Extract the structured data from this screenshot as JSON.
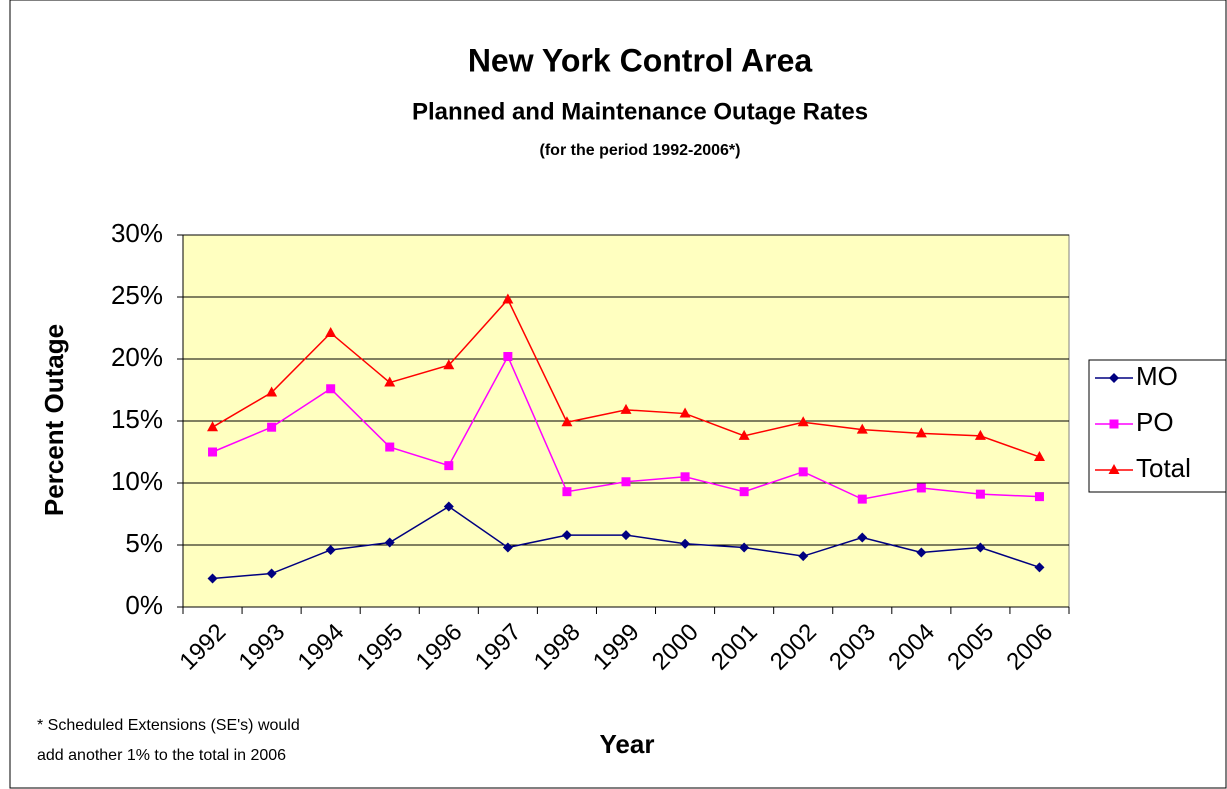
{
  "chart_data": {
    "type": "line",
    "title": "New York Control Area",
    "subtitle": "Planned and Maintenance Outage Rates",
    "period_note": "(for the period 1992-2006*)",
    "x_label": "Year",
    "y_label": "Percent Outage",
    "footnote": [
      "* Scheduled Extensions (SE's) would",
      "add another 1% to the total in 2006"
    ],
    "categories": [
      "1992",
      "1993",
      "1994",
      "1995",
      "1996",
      "1997",
      "1998",
      "1999",
      "2000",
      "2001",
      "2002",
      "2003",
      "2004",
      "2005",
      "2006"
    ],
    "series": [
      {
        "name": "MO",
        "color": "#000080",
        "marker": "diamond",
        "values": [
          2.3,
          2.7,
          4.6,
          5.2,
          8.1,
          4.8,
          5.8,
          5.8,
          5.1,
          4.8,
          4.1,
          5.6,
          4.4,
          4.8,
          3.2
        ]
      },
      {
        "name": "PO",
        "color": "#ff00ff",
        "marker": "square",
        "values": [
          12.5,
          14.5,
          17.6,
          12.9,
          11.4,
          20.2,
          9.3,
          10.1,
          10.5,
          9.3,
          10.9,
          8.7,
          9.6,
          9.1,
          8.9
        ]
      },
      {
        "name": "Total",
        "color": "#ff0000",
        "marker": "triangle",
        "values": [
          14.5,
          17.3,
          22.1,
          18.1,
          19.5,
          24.8,
          14.9,
          15.9,
          15.6,
          13.8,
          14.9,
          14.3,
          14.0,
          13.8,
          12.1
        ]
      }
    ],
    "ylim": [
      0,
      30
    ],
    "yticks": [
      {
        "value": 0,
        "label": "0%"
      },
      {
        "value": 5,
        "label": "5%"
      },
      {
        "value": 10,
        "label": "10%"
      },
      {
        "value": 15,
        "label": "15%"
      },
      {
        "value": 20,
        "label": "20%"
      },
      {
        "value": 25,
        "label": "25%"
      },
      {
        "value": 30,
        "label": "30%"
      }
    ],
    "grid": true,
    "plot_background": "#ffffc0",
    "legend": "right"
  }
}
